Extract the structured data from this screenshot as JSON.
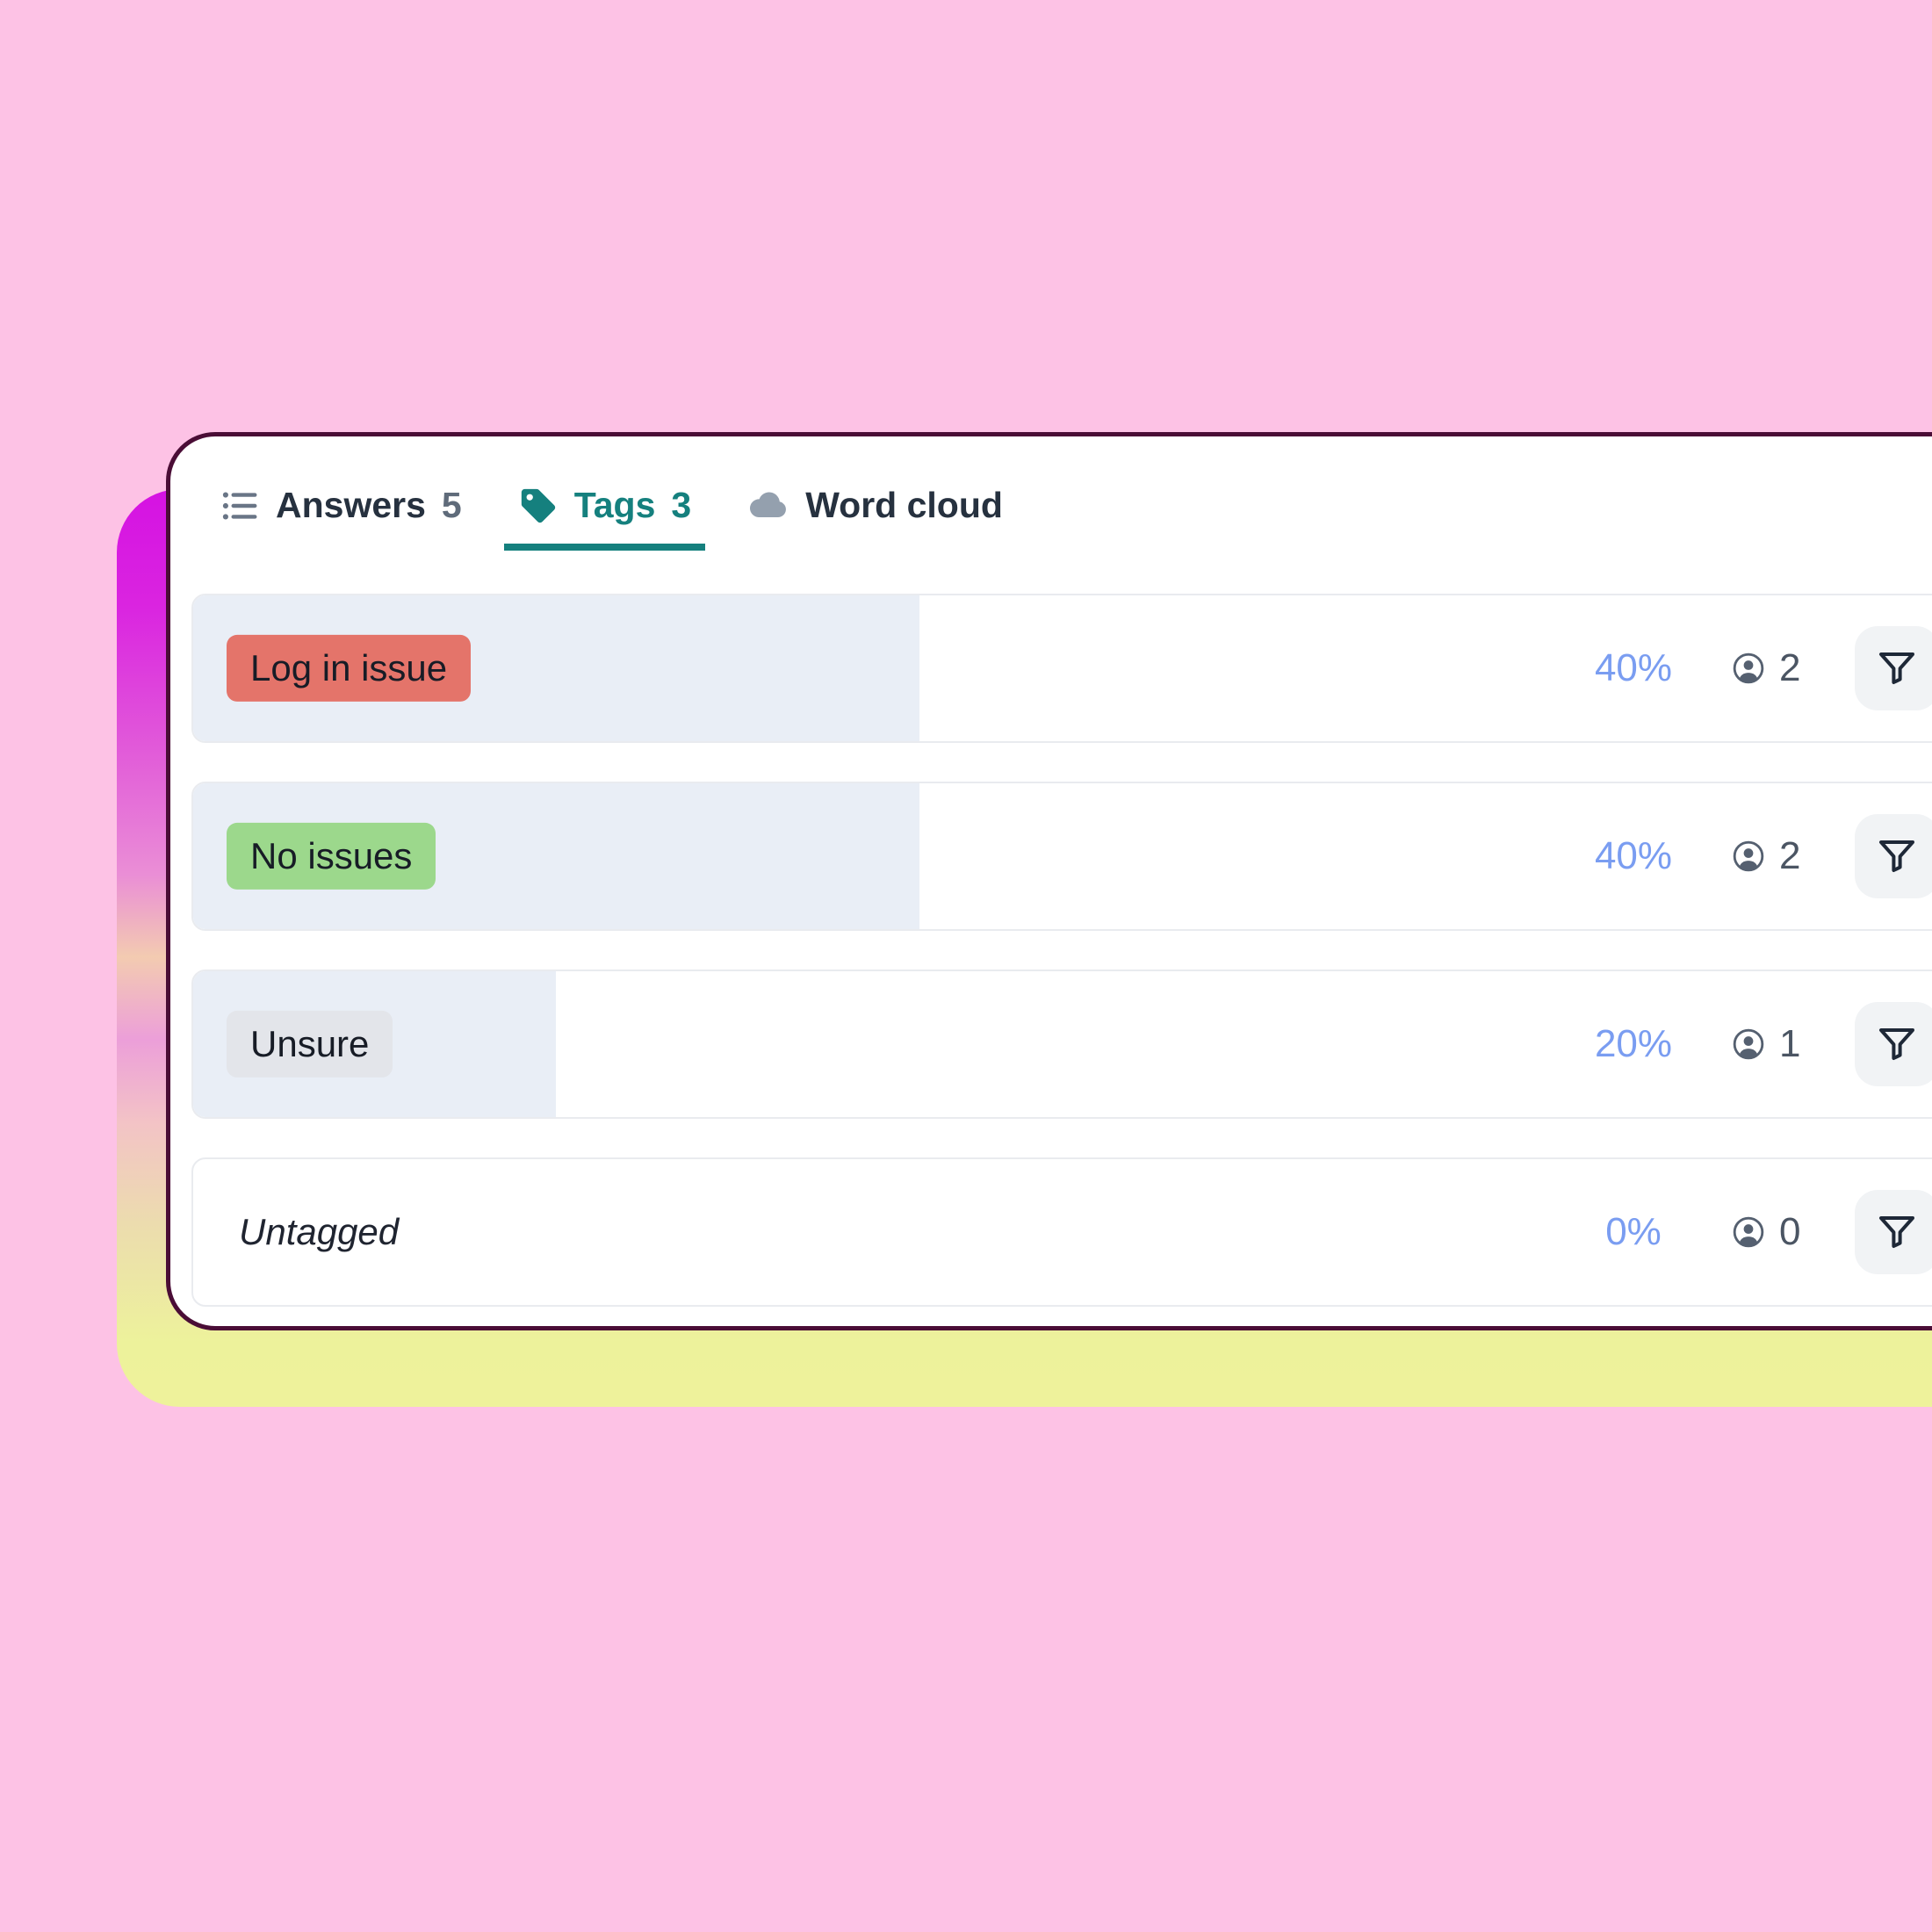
{
  "tabs": {
    "answers": {
      "label": "Answers",
      "count": "5",
      "icon": "list-icon"
    },
    "tags": {
      "label": "Tags",
      "count": "3",
      "icon": "tag-icon",
      "active": true
    },
    "wordcloud": {
      "label": "Word cloud",
      "icon": "cloud-icon"
    }
  },
  "rows": [
    {
      "tag": "Log in issue",
      "tag_bg": "#e4746a",
      "percent": 40,
      "percent_label": "40%",
      "count": "2"
    },
    {
      "tag": "No issues",
      "tag_bg": "#9cd88c",
      "percent": 40,
      "percent_label": "40%",
      "count": "2"
    },
    {
      "tag": "Unsure",
      "tag_bg": "#e3e5ea",
      "percent": 20,
      "percent_label": "20%",
      "count": "1"
    },
    {
      "tag": "Untagged",
      "tag_bg": null,
      "percent": 0,
      "percent_label": "0%",
      "count": "0"
    }
  ],
  "icons": {
    "tab1": "list-icon",
    "tab2": "tag-icon",
    "tab3": "cloud-icon",
    "row_count": "person-circle-icon",
    "row_action": "filter-funnel-icon"
  },
  "colors": {
    "background_pink": "#fdc2e5",
    "card_border_plum": "#4a0d36",
    "accent_teal": "#15807e",
    "percent_blue": "#7a9df1",
    "row_fill_blue": "#e9eef6",
    "tag_red": "#e4746a",
    "tag_green": "#9cd88c",
    "tag_gray": "#e3e5ea",
    "glow_top_magenta": "#d512e2",
    "glow_bottom_yellow": "#edf29b"
  }
}
